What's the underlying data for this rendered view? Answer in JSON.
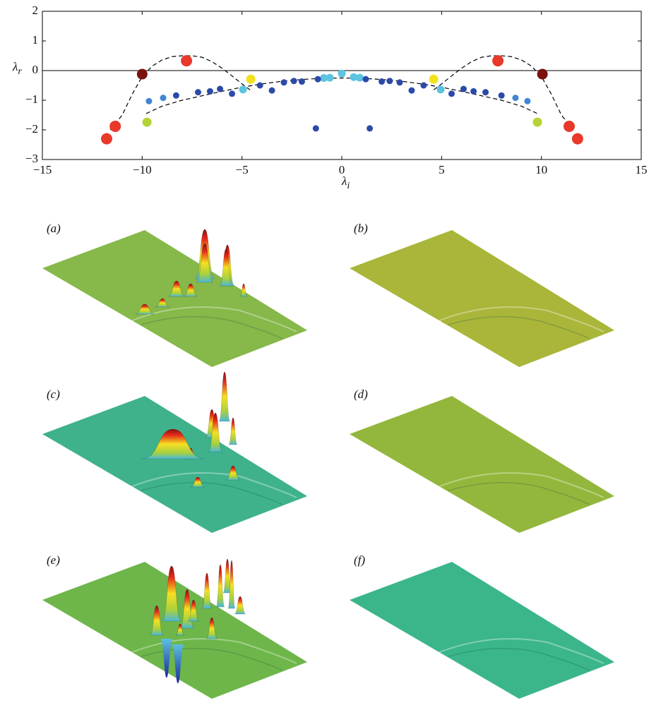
{
  "chart_data": {
    "type": "scatter",
    "xlabel": "λ",
    "xlabel_sub": "i",
    "ylabel": "λ",
    "ylabel_sub": "r",
    "xlim": [
      -15,
      15
    ],
    "xticks": [
      {
        "value": -15,
        "label": "−15"
      },
      {
        "value": -10,
        "label": "−10"
      },
      {
        "value": -5,
        "label": "−5"
      },
      0,
      5,
      10,
      15
    ],
    "ylim": [
      -3,
      2
    ],
    "yticks": [
      {
        "value": -3,
        "label": "−3"
      },
      {
        "value": -2,
        "label": "−2"
      },
      {
        "value": -1,
        "label": "−1"
      },
      0,
      1,
      2
    ],
    "series": [
      {
        "color": "#e8392a",
        "x": [
          -11.78,
          -11.35,
          -7.78,
          7.82,
          11.39,
          11.81
        ],
        "values": [
          -2.3,
          -1.88,
          0.33,
          0.33,
          -1.88,
          -2.3
        ]
      },
      {
        "color": "#7a1010",
        "x": [
          -10.0,
          10.05
        ],
        "values": [
          -0.12,
          -0.12
        ]
      },
      {
        "color": "#f2e21e",
        "x": [
          -4.56,
          4.6
        ],
        "values": [
          -0.29,
          -0.29
        ]
      },
      {
        "color": "#b5d334",
        "x": [
          -9.76,
          9.8
        ],
        "values": [
          -1.74,
          -1.74
        ]
      },
      {
        "color": "#5cc3e0",
        "x": [
          -4.95,
          -0.9,
          -0.6,
          0,
          0.6,
          0.9,
          4.95
        ],
        "values": [
          -0.64,
          -0.25,
          -0.24,
          -0.1,
          -0.22,
          -0.24,
          -0.64
        ]
      },
      {
        "color": "#3f86d4",
        "x": [
          -9.66,
          -8.95,
          8.7,
          9.3
        ],
        "values": [
          -1.03,
          -0.92,
          -0.92,
          -1.03
        ]
      },
      {
        "color": "#2b4aa8",
        "x": [
          -8.3,
          -7.2,
          -6.6,
          -6.1,
          -5.5,
          -4.1,
          -3.5,
          -2.9,
          -2.4,
          -2.0,
          -1.2,
          -1.3,
          1.2,
          1.4,
          2.0,
          2.4,
          2.9,
          3.5,
          4.1,
          5.5,
          6.1,
          6.6,
          7.2,
          8.0
        ],
        "values": [
          -0.84,
          -0.73,
          -0.7,
          -0.62,
          -0.78,
          -0.5,
          -0.67,
          -0.4,
          -0.35,
          -0.37,
          -0.29,
          -1.95,
          -0.29,
          -1.95,
          -0.37,
          -0.35,
          -0.4,
          -0.67,
          -0.5,
          -0.78,
          -0.62,
          -0.7,
          -0.73,
          -0.84
        ]
      }
    ],
    "curves": [
      {
        "color": "#000000",
        "x": [
          -11.6,
          -11.0,
          -10.5,
          -10.0,
          -9.5,
          -9.0,
          -8.5,
          -8.0,
          -7.5,
          -7.0,
          -6.5,
          -6.0,
          -5.5,
          -5.0,
          -4.6
        ],
        "values": [
          -2.0,
          -1.5,
          -0.8,
          -0.2,
          0.15,
          0.36,
          0.47,
          0.5,
          0.5,
          0.45,
          0.3,
          0.08,
          -0.18,
          -0.45,
          -0.65
        ]
      },
      {
        "color": "#000000",
        "x": [
          4.6,
          5.0,
          5.5,
          6.0,
          6.5,
          7.0,
          7.5,
          8.0,
          8.5,
          9.0,
          9.5,
          10.0,
          10.5,
          11.0,
          11.6
        ],
        "values": [
          -0.65,
          -0.45,
          -0.18,
          0.08,
          0.3,
          0.45,
          0.5,
          0.5,
          0.47,
          0.36,
          0.15,
          -0.2,
          -0.8,
          -1.5,
          -2.0
        ]
      },
      {
        "color": "#000000",
        "x": [
          -9.8,
          -9,
          -8,
          -7,
          -6,
          -5,
          -4,
          -3,
          -2,
          -1,
          0,
          1,
          2,
          3,
          4,
          5,
          6,
          7,
          8,
          9,
          9.8
        ],
        "values": [
          -1.45,
          -1.2,
          -1.0,
          -0.85,
          -0.7,
          -0.56,
          -0.45,
          -0.36,
          -0.3,
          -0.26,
          -0.25,
          -0.26,
          -0.3,
          -0.36,
          -0.45,
          -0.56,
          -0.7,
          -0.85,
          -1.0,
          -1.2,
          -1.45
        ]
      }
    ],
    "zero_line": true
  },
  "panels": [
    {
      "label": "(a)"
    },
    {
      "label": "(b)"
    },
    {
      "label": "(c)"
    },
    {
      "label": "(d)"
    },
    {
      "label": "(e)"
    },
    {
      "label": "(f)"
    }
  ]
}
